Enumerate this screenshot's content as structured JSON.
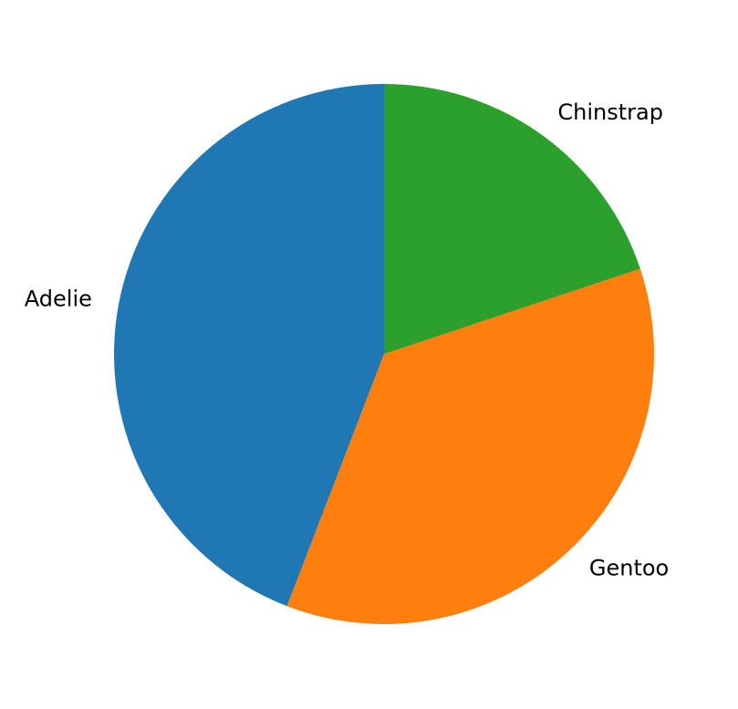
{
  "chart_data": {
    "type": "pie",
    "title": "",
    "start_angle_deg": 90,
    "direction": "counterclockwise",
    "slices": [
      {
        "label": "Adelie",
        "value": 151,
        "color": "#1f77b4"
      },
      {
        "label": "Gentoo",
        "value": 123,
        "color": "#ff7f0e"
      },
      {
        "label": "Chinstrap",
        "value": 68,
        "color": "#2ca02c"
      }
    ]
  }
}
